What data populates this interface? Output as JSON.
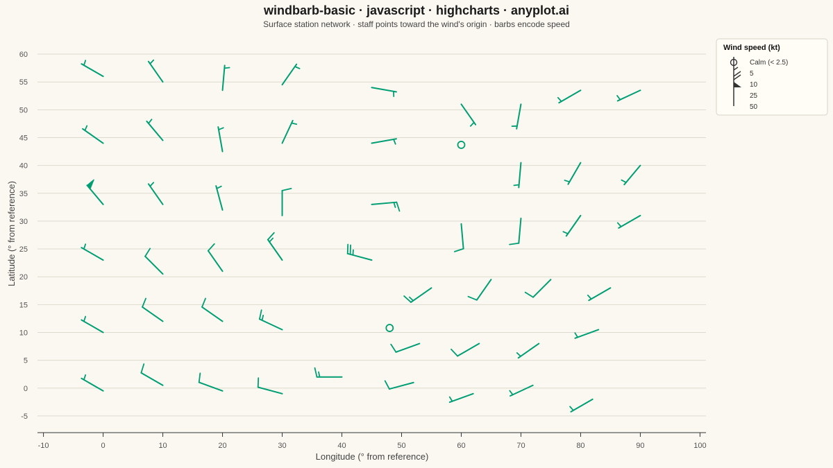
{
  "chart_data": {
    "type": "windbarb",
    "title": "windbarb-basic · javascript · highcharts · anyplot.ai",
    "subtitle": "Surface station network · staff points toward the wind's origin · barbs encode speed",
    "xlabel": "Longitude (° from reference)",
    "ylabel": "Latitude (° from reference)",
    "xlim": [
      -11,
      101
    ],
    "ylim": [
      -8,
      62
    ],
    "xticks": [
      -10,
      0,
      10,
      20,
      30,
      40,
      50,
      60,
      70,
      80,
      90,
      100
    ],
    "yticks": [
      -5,
      0,
      5,
      10,
      15,
      20,
      25,
      30,
      35,
      40,
      45,
      50,
      55,
      60
    ],
    "color": "#009E73",
    "grid": true,
    "legend": {
      "title": "Wind speed (kt)",
      "placement": "right",
      "entries": [
        "Calm (< 2.5)",
        "5",
        "10",
        "25",
        "50"
      ]
    },
    "stations": [
      {
        "x": 0,
        "y": 56,
        "dir": 300,
        "speed": 5
      },
      {
        "x": 10,
        "y": 55,
        "dir": 325,
        "speed": 5
      },
      {
        "x": 20,
        "y": 53.5,
        "dir": 5,
        "speed": 5
      },
      {
        "x": 30,
        "y": 54.5,
        "dir": 35,
        "speed": 5
      },
      {
        "x": 45,
        "y": 54,
        "dir": 100,
        "speed": 5
      },
      {
        "x": 60,
        "y": 51,
        "dir": 145,
        "speed": 5
      },
      {
        "x": 70,
        "y": 51,
        "dir": 190,
        "speed": 5
      },
      {
        "x": 80,
        "y": 53.5,
        "dir": 240,
        "speed": 5
      },
      {
        "x": 90,
        "y": 53.5,
        "dir": 245,
        "speed": 5
      },
      {
        "x": 0,
        "y": 44,
        "dir": 305,
        "speed": 5
      },
      {
        "x": 10,
        "y": 44.5,
        "dir": 320,
        "speed": 5
      },
      {
        "x": 20,
        "y": 42.5,
        "dir": 350,
        "speed": 5
      },
      {
        "x": 30,
        "y": 44,
        "dir": 25,
        "speed": 5
      },
      {
        "x": 45,
        "y": 44,
        "dir": 80,
        "speed": 5
      },
      {
        "x": 60,
        "y": 43.7,
        "dir": 0,
        "speed": 0
      },
      {
        "x": 70,
        "y": 40.5,
        "dir": 185,
        "speed": 5
      },
      {
        "x": 80,
        "y": 40.5,
        "dir": 210,
        "speed": 5
      },
      {
        "x": 90,
        "y": 40,
        "dir": 220,
        "speed": 5
      },
      {
        "x": 0,
        "y": 33,
        "dir": 320,
        "speed": 50
      },
      {
        "x": 10,
        "y": 33,
        "dir": 325,
        "speed": 5
      },
      {
        "x": 20,
        "y": 32,
        "dir": 345,
        "speed": 5
      },
      {
        "x": 30,
        "y": 31,
        "dir": 0,
        "speed": 10
      },
      {
        "x": 45,
        "y": 33,
        "dir": 85,
        "speed": 15
      },
      {
        "x": 60,
        "y": 29.5,
        "dir": 175,
        "speed": 10
      },
      {
        "x": 70,
        "y": 30.5,
        "dir": 185,
        "speed": 10
      },
      {
        "x": 80,
        "y": 31,
        "dir": 215,
        "speed": 5
      },
      {
        "x": 90,
        "y": 31,
        "dir": 240,
        "speed": 5
      },
      {
        "x": 0,
        "y": 23,
        "dir": 300,
        "speed": 5
      },
      {
        "x": 10,
        "y": 20.5,
        "dir": 315,
        "speed": 10
      },
      {
        "x": 20,
        "y": 21,
        "dir": 325,
        "speed": 10
      },
      {
        "x": 30,
        "y": 23,
        "dir": 325,
        "speed": 15
      },
      {
        "x": 45,
        "y": 23,
        "dir": 285,
        "speed": 25
      },
      {
        "x": 55,
        "y": 18,
        "dir": 235,
        "speed": 15
      },
      {
        "x": 65,
        "y": 19.5,
        "dir": 215,
        "speed": 10
      },
      {
        "x": 75,
        "y": 19.5,
        "dir": 225,
        "speed": 10
      },
      {
        "x": 85,
        "y": 18,
        "dir": 240,
        "speed": 5
      },
      {
        "x": 0,
        "y": 10,
        "dir": 300,
        "speed": 5
      },
      {
        "x": 10,
        "y": 12,
        "dir": 305,
        "speed": 10
      },
      {
        "x": 20,
        "y": 12,
        "dir": 305,
        "speed": 10
      },
      {
        "x": 30,
        "y": 10.5,
        "dir": 295,
        "speed": 15
      },
      {
        "x": 48,
        "y": 10.8,
        "dir": 0,
        "speed": 0
      },
      {
        "x": 53,
        "y": 8,
        "dir": 250,
        "speed": 10
      },
      {
        "x": 63,
        "y": 8,
        "dir": 240,
        "speed": 10
      },
      {
        "x": 73,
        "y": 8,
        "dir": 235,
        "speed": 5
      },
      {
        "x": 83,
        "y": 10.5,
        "dir": 250,
        "speed": 5
      },
      {
        "x": 0,
        "y": -0.5,
        "dir": 300,
        "speed": 5
      },
      {
        "x": 10,
        "y": 0.5,
        "dir": 300,
        "speed": 10
      },
      {
        "x": 20,
        "y": -0.5,
        "dir": 290,
        "speed": 10
      },
      {
        "x": 30,
        "y": -1,
        "dir": 285,
        "speed": 10
      },
      {
        "x": 40,
        "y": 2,
        "dir": 270,
        "speed": 15
      },
      {
        "x": 52,
        "y": 1,
        "dir": 255,
        "speed": 10
      },
      {
        "x": 62,
        "y": -1,
        "dir": 250,
        "speed": 5
      },
      {
        "x": 72,
        "y": 0.5,
        "dir": 245,
        "speed": 5
      },
      {
        "x": 82,
        "y": -2,
        "dir": 240,
        "speed": 5
      }
    ]
  }
}
